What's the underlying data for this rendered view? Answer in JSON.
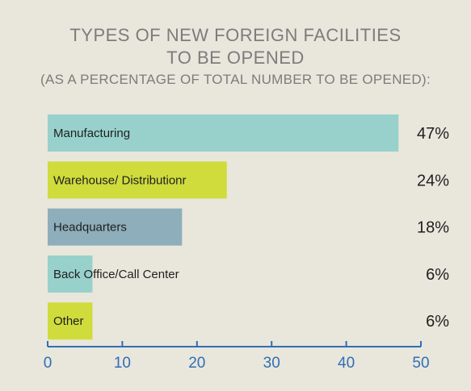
{
  "chart_data": {
    "type": "bar",
    "orientation": "horizontal",
    "title_lines": [
      "TYPES OF NEW FOREIGN FACILITIES",
      "TO BE OPENED"
    ],
    "subtitle": "(AS A PERCENTAGE OF TOTAL NUMBER TO BE OPENED):",
    "categories": [
      "Manufacturing",
      "Warehouse/ Distributionr",
      "Headquarters",
      "Back Office/Call Center",
      "Other"
    ],
    "values": [
      47,
      24,
      18,
      6,
      6
    ],
    "value_labels": [
      "47%",
      "24%",
      "18%",
      "6%",
      "6%"
    ],
    "bar_colors": [
      "#98d1cb",
      "#cfdc3c",
      "#8eaebb",
      "#98d1cb",
      "#cfdc3c"
    ],
    "xlim": [
      0,
      50
    ],
    "xticks": [
      0,
      10,
      20,
      30,
      40,
      50
    ],
    "axis_color": "#2f6fb5",
    "grid": false,
    "xlabel": "",
    "ylabel": ""
  }
}
